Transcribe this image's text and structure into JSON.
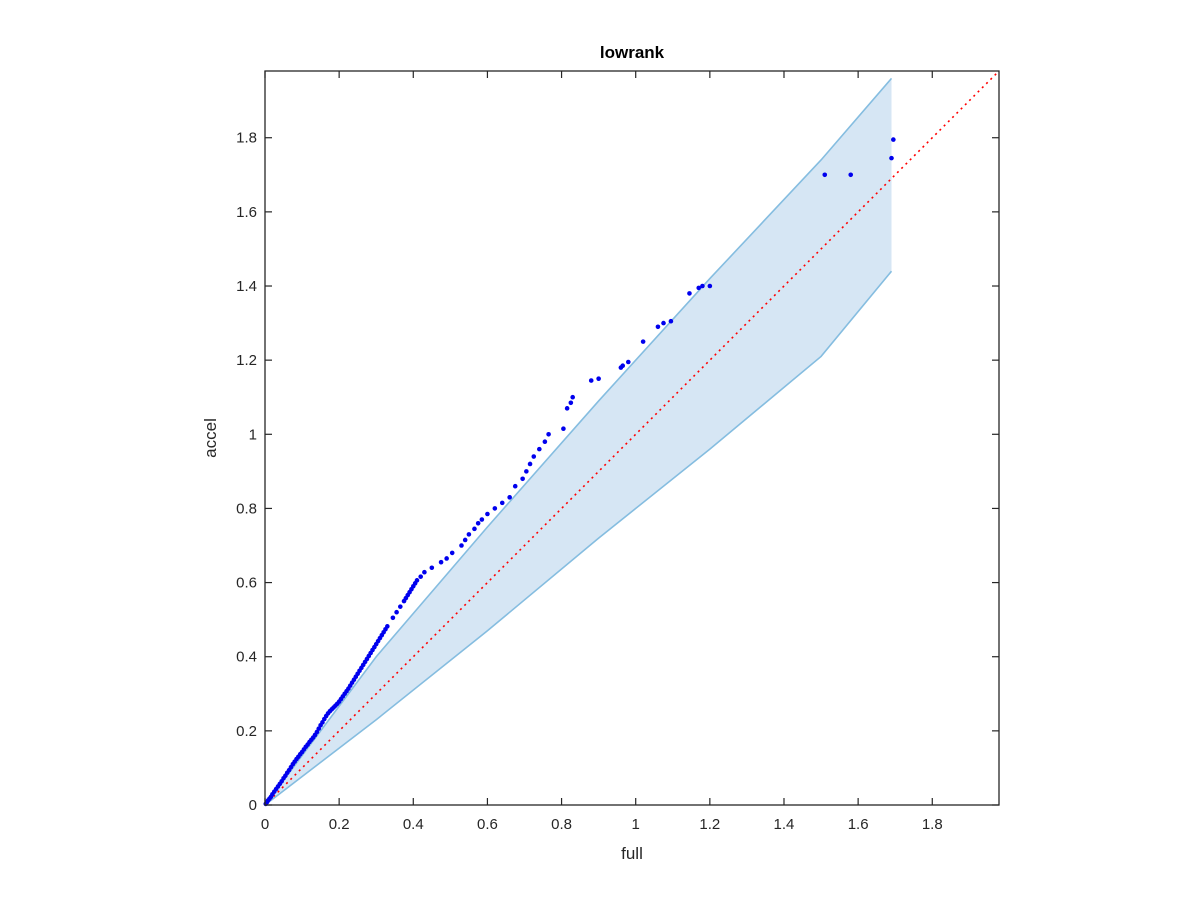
{
  "chart_data": {
    "type": "scatter",
    "title": "lowrank",
    "xlabel": "full",
    "ylabel": "accel",
    "xlim": [
      0,
      1.98
    ],
    "ylim": [
      0,
      1.98
    ],
    "xticks": [
      "0",
      "0.2",
      "0.4",
      "0.6",
      "0.8",
      "1",
      "1.2",
      "1.4",
      "1.6",
      "1.8"
    ],
    "yticks": [
      "0",
      "0.2",
      "0.4",
      "0.6",
      "0.8",
      "1",
      "1.2",
      "1.4",
      "1.6",
      "1.8"
    ],
    "grid": false,
    "colors": {
      "points": "#0000ee",
      "reference_line": "#ff0000",
      "band_fill": "#d6e6f4",
      "band_edge": "#85bde0",
      "axes": "#262626"
    },
    "reference_line": {
      "style": "dotted",
      "x": [
        0,
        1.98
      ],
      "y": [
        0,
        1.98
      ]
    },
    "confidence_band": {
      "x": [
        0,
        0.3,
        0.6,
        0.9,
        1.2,
        1.5,
        1.69
      ],
      "upper": [
        0,
        0.4,
        0.75,
        1.09,
        1.42,
        1.74,
        1.96
      ],
      "lower": [
        0,
        0.23,
        0.47,
        0.72,
        0.96,
        1.21,
        1.44
      ]
    },
    "series": [
      {
        "x": [
          0.002,
          0.005,
          0.008,
          0.012,
          0.016,
          0.02,
          0.025,
          0.03,
          0.035,
          0.04,
          0.045,
          0.05,
          0.055,
          0.06,
          0.065,
          0.07,
          0.075,
          0.08,
          0.085,
          0.09,
          0.095,
          0.1,
          0.105,
          0.11,
          0.115,
          0.12,
          0.125,
          0.13,
          0.135,
          0.14,
          0.145,
          0.15,
          0.155,
          0.16,
          0.165,
          0.17,
          0.175,
          0.18,
          0.185,
          0.19,
          0.195,
          0.2,
          0.205,
          0.21,
          0.215,
          0.22,
          0.225,
          0.23,
          0.235,
          0.24,
          0.245,
          0.25,
          0.255,
          0.26,
          0.265,
          0.27,
          0.275,
          0.28,
          0.285,
          0.29,
          0.295,
          0.3,
          0.305,
          0.31,
          0.315,
          0.32,
          0.325,
          0.33,
          0.345,
          0.355,
          0.365,
          0.375,
          0.38,
          0.385,
          0.39,
          0.395,
          0.4,
          0.405,
          0.41,
          0.42,
          0.43,
          0.45,
          0.475,
          0.49,
          0.505,
          0.53,
          0.54,
          0.55,
          0.565,
          0.575,
          0.585,
          0.6,
          0.62,
          0.64,
          0.66,
          0.675,
          0.695,
          0.705,
          0.715,
          0.725,
          0.74,
          0.755,
          0.765,
          0.805,
          0.815,
          0.825,
          0.83,
          0.88,
          0.9,
          0.96,
          0.965,
          0.98,
          1.02,
          1.06,
          1.075,
          1.095,
          1.145,
          1.17,
          1.18,
          1.2,
          1.51,
          1.58,
          1.69,
          1.695
        ],
        "y": [
          0.003,
          0.007,
          0.012,
          0.017,
          0.022,
          0.029,
          0.036,
          0.043,
          0.05,
          0.057,
          0.064,
          0.072,
          0.079,
          0.087,
          0.094,
          0.102,
          0.11,
          0.117,
          0.124,
          0.13,
          0.137,
          0.143,
          0.15,
          0.157,
          0.163,
          0.17,
          0.176,
          0.182,
          0.189,
          0.197,
          0.206,
          0.215,
          0.223,
          0.232,
          0.24,
          0.247,
          0.253,
          0.258,
          0.263,
          0.268,
          0.273,
          0.279,
          0.286,
          0.293,
          0.3,
          0.307,
          0.314,
          0.322,
          0.33,
          0.338,
          0.346,
          0.354,
          0.362,
          0.37,
          0.378,
          0.386,
          0.394,
          0.402,
          0.41,
          0.418,
          0.426,
          0.434,
          0.442,
          0.45,
          0.458,
          0.466,
          0.474,
          0.482,
          0.505,
          0.52,
          0.535,
          0.55,
          0.558,
          0.566,
          0.574,
          0.582,
          0.59,
          0.598,
          0.606,
          0.616,
          0.628,
          0.64,
          0.655,
          0.665,
          0.68,
          0.7,
          0.715,
          0.73,
          0.745,
          0.76,
          0.77,
          0.785,
          0.8,
          0.815,
          0.83,
          0.86,
          0.88,
          0.9,
          0.92,
          0.94,
          0.96,
          0.98,
          1.0,
          1.015,
          1.07,
          1.085,
          1.1,
          1.145,
          1.15,
          1.18,
          1.185,
          1.195,
          1.25,
          1.29,
          1.3,
          1.305,
          1.38,
          1.395,
          1.4,
          1.4,
          1.7,
          1.7,
          1.745,
          1.795
        ]
      }
    ]
  }
}
